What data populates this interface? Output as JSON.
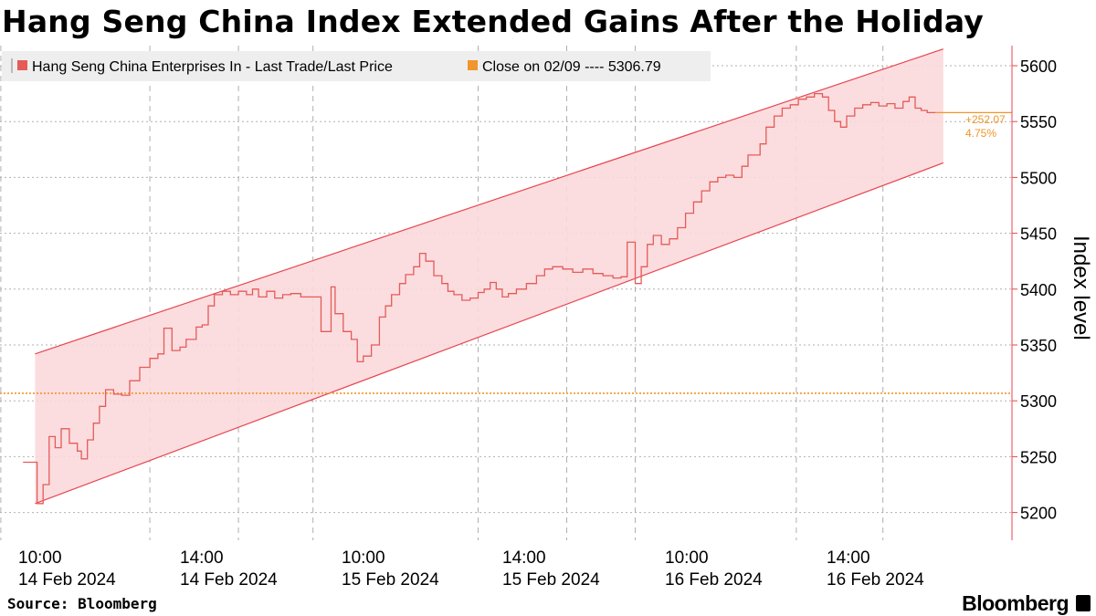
{
  "title": "Hang Seng China Index Extended Gains After the Holiday",
  "source": "Source: Bloomberg",
  "brand": "Bloomberg",
  "colors": {
    "series": "#e55b57",
    "channel_fill": "#fbd9dd",
    "channel_line": "#e8454f",
    "close_line": "#f0962c",
    "grid": "#b0b0b0",
    "axis": "#e8454f",
    "legend_bg": "#eeeeee"
  },
  "chart_data": {
    "type": "line",
    "title": "Hang Seng China Index Extended Gains After the Holiday",
    "xlabel": "",
    "ylabel": "Index level",
    "ylim": [
      5170,
      5620
    ],
    "yticks": [
      5200,
      5250,
      5300,
      5350,
      5400,
      5450,
      5500,
      5550,
      5600
    ],
    "grid": true,
    "legend_position": "top-left",
    "x_tick_labels": [
      {
        "time": "10:00",
        "date": "14 Feb 2024"
      },
      {
        "time": "14:00",
        "date": "14 Feb 2024"
      },
      {
        "time": "10:00",
        "date": "15 Feb 2024"
      },
      {
        "time": "14:00",
        "date": "15 Feb 2024"
      },
      {
        "time": "10:00",
        "date": "16 Feb 2024"
      },
      {
        "time": "14:00",
        "date": "16 Feb 2024"
      }
    ],
    "series": [
      {
        "name": "Hang Seng China Enterprises In - Last Trade/Last Price",
        "points": [
          [
            -0.45,
            5245
          ],
          [
            -0.2,
            5245
          ],
          [
            -0.1,
            5208
          ],
          [
            0.05,
            5225
          ],
          [
            0.2,
            5268
          ],
          [
            0.35,
            5258
          ],
          [
            0.5,
            5275
          ],
          [
            0.7,
            5262
          ],
          [
            0.9,
            5255
          ],
          [
            1.0,
            5248
          ],
          [
            1.15,
            5265
          ],
          [
            1.3,
            5280
          ],
          [
            1.45,
            5295
          ],
          [
            1.6,
            5310
          ],
          [
            1.8,
            5306
          ],
          [
            2.0,
            5305
          ],
          [
            2.2,
            5318
          ],
          [
            2.45,
            5330
          ],
          [
            2.7,
            5338
          ],
          [
            2.9,
            5342
          ],
          [
            3.05,
            5365
          ],
          [
            3.25,
            5345
          ],
          [
            3.45,
            5348
          ],
          [
            3.6,
            5355
          ],
          [
            3.85,
            5366
          ],
          [
            4.0,
            5368
          ],
          [
            4.15,
            5385
          ],
          [
            4.3,
            5395
          ],
          [
            4.5,
            5398
          ],
          [
            4.7,
            5395
          ],
          [
            4.9,
            5398
          ],
          [
            5.1,
            5395
          ],
          [
            5.25,
            5400
          ],
          [
            5.4,
            5393
          ],
          [
            5.6,
            5398
          ],
          [
            5.8,
            5392
          ],
          [
            6.0,
            5395
          ],
          [
            6.2,
            5396
          ],
          [
            6.45,
            5393
          ],
          [
            6.95,
            5362
          ],
          [
            7.15,
            5362
          ],
          [
            7.2,
            5402
          ],
          [
            7.3,
            5378
          ],
          [
            7.5,
            5362
          ],
          [
            7.7,
            5355
          ],
          [
            7.85,
            5335
          ],
          [
            8.0,
            5340
          ],
          [
            8.2,
            5350
          ],
          [
            8.4,
            5375
          ],
          [
            8.55,
            5385
          ],
          [
            8.7,
            5395
          ],
          [
            8.9,
            5405
          ],
          [
            9.05,
            5413
          ],
          [
            9.25,
            5420
          ],
          [
            9.4,
            5432
          ],
          [
            9.55,
            5425
          ],
          [
            9.75,
            5412
          ],
          [
            9.95,
            5405
          ],
          [
            10.1,
            5398
          ],
          [
            10.25,
            5395
          ],
          [
            10.45,
            5390
          ],
          [
            10.65,
            5392
          ],
          [
            10.85,
            5397
          ],
          [
            11.0,
            5400
          ],
          [
            11.15,
            5406
          ],
          [
            11.3,
            5400
          ],
          [
            11.45,
            5393
          ],
          [
            11.6,
            5396
          ],
          [
            11.8,
            5400
          ],
          [
            12.05,
            5405
          ],
          [
            12.3,
            5412
          ],
          [
            12.5,
            5418
          ],
          [
            12.7,
            5420
          ],
          [
            12.95,
            5418
          ],
          [
            13.2,
            5415
          ],
          [
            13.45,
            5418
          ],
          [
            13.7,
            5414
          ],
          [
            13.95,
            5412
          ],
          [
            14.2,
            5410
          ],
          [
            14.4,
            5411
          ],
          [
            14.55,
            5442
          ],
          [
            14.75,
            5405
          ],
          [
            14.9,
            5420
          ],
          [
            15.05,
            5440
          ],
          [
            15.2,
            5448
          ],
          [
            15.4,
            5440
          ],
          [
            15.6,
            5445
          ],
          [
            15.8,
            5455
          ],
          [
            16.0,
            5468
          ],
          [
            16.2,
            5478
          ],
          [
            16.4,
            5488
          ],
          [
            16.6,
            5496
          ],
          [
            16.8,
            5500
          ],
          [
            17.0,
            5502
          ],
          [
            17.2,
            5500
          ],
          [
            17.4,
            5510
          ],
          [
            17.55,
            5520
          ],
          [
            17.7,
            5520
          ],
          [
            17.85,
            5530
          ],
          [
            18.0,
            5545
          ],
          [
            18.2,
            5555
          ],
          [
            18.4,
            5562
          ],
          [
            18.6,
            5565
          ],
          [
            18.8,
            5570
          ],
          [
            19.0,
            5572
          ],
          [
            19.2,
            5575
          ],
          [
            19.4,
            5572
          ],
          [
            19.55,
            5560
          ],
          [
            19.7,
            5550
          ],
          [
            19.85,
            5545
          ],
          [
            20.0,
            5555
          ],
          [
            20.2,
            5562
          ],
          [
            20.4,
            5565
          ],
          [
            20.6,
            5567
          ],
          [
            20.8,
            5564
          ],
          [
            21.0,
            5566
          ],
          [
            21.2,
            5562
          ],
          [
            21.4,
            5568
          ],
          [
            21.55,
            5572
          ],
          [
            21.7,
            5562
          ],
          [
            21.85,
            5560
          ],
          [
            22.0,
            5558
          ],
          [
            22.2,
            5558
          ]
        ]
      },
      {
        "name": "Close on 02/09 ---- 5306.79",
        "values": [
          5306.79
        ]
      }
    ],
    "trend_channel": {
      "upper": {
        "start": [
          -0.15,
          5342
        ],
        "end": [
          22.4,
          5615
        ]
      },
      "lower": {
        "start": [
          -0.15,
          5208
        ],
        "end": [
          22.4,
          5513
        ]
      }
    },
    "annotations": [
      "+252.07",
      "4.75%"
    ]
  },
  "legend": [
    {
      "label": "Hang Seng China Enterprises In - Last Trade/Last Price"
    },
    {
      "label": "Close on 02/09 ---- 5306.79"
    }
  ],
  "y_axis_title": "Index level"
}
